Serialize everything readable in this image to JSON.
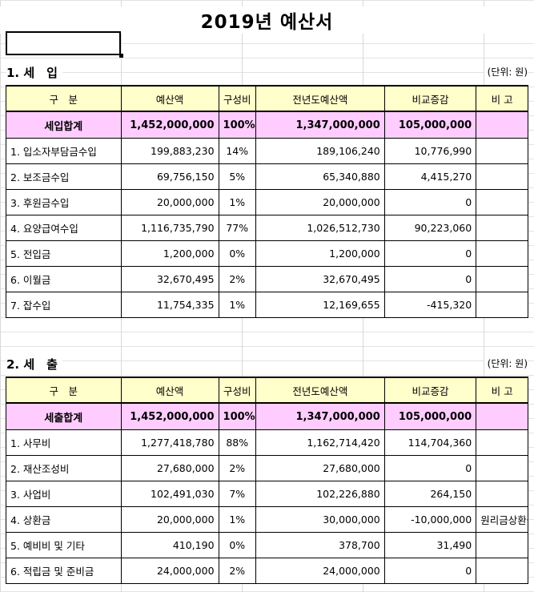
{
  "title": "2019년 예산서",
  "columns": [
    "구　분",
    "예산액",
    "구성비",
    "전년도예산액",
    "비교증감",
    "비 고"
  ],
  "revenue": {
    "heading": "1. 세　입",
    "unit": "(단위: 원)",
    "total": {
      "name": "세입합계",
      "budget": "1,452,000,000",
      "ratio": "100%",
      "prev": "1,347,000,000",
      "diff": "105,000,000",
      "note": ""
    },
    "rows": [
      {
        "name": "1. 입소자부담금수입",
        "budget": "199,883,230",
        "ratio": "14%",
        "prev": "189,106,240",
        "diff": "10,776,990",
        "note": ""
      },
      {
        "name": "2. 보조금수입",
        "budget": "69,756,150",
        "ratio": "5%",
        "prev": "65,340,880",
        "diff": "4,415,270",
        "note": ""
      },
      {
        "name": "3. 후원금수입",
        "budget": "20,000,000",
        "ratio": "1%",
        "prev": "20,000,000",
        "diff": "0",
        "note": ""
      },
      {
        "name": "4. 요양급여수입",
        "budget": "1,116,735,790",
        "ratio": "77%",
        "prev": "1,026,512,730",
        "diff": "90,223,060",
        "note": ""
      },
      {
        "name": "5. 전입금",
        "budget": "1,200,000",
        "ratio": "0%",
        "prev": "1,200,000",
        "diff": "0",
        "note": ""
      },
      {
        "name": "6. 이월금",
        "budget": "32,670,495",
        "ratio": "2%",
        "prev": "32,670,495",
        "diff": "0",
        "note": ""
      },
      {
        "name": "7. 잡수입",
        "budget": "11,754,335",
        "ratio": "1%",
        "prev": "12,169,655",
        "diff": "-415,320",
        "note": ""
      }
    ]
  },
  "expense": {
    "heading": "2. 세　출",
    "unit": "(단위: 원)",
    "total": {
      "name": "세출합계",
      "budget": "1,452,000,000",
      "ratio": "100%",
      "prev": "1,347,000,000",
      "diff": "105,000,000",
      "note": ""
    },
    "rows": [
      {
        "name": "1. 사무비",
        "budget": "1,277,418,780",
        "ratio": "88%",
        "prev": "1,162,714,420",
        "diff": "114,704,360",
        "note": ""
      },
      {
        "name": "2. 재산조성비",
        "budget": "27,680,000",
        "ratio": "2%",
        "prev": "27,680,000",
        "diff": "0",
        "note": ""
      },
      {
        "name": "3. 사업비",
        "budget": "102,491,030",
        "ratio": "7%",
        "prev": "102,226,880",
        "diff": "264,150",
        "note": ""
      },
      {
        "name": "4. 상환금",
        "budget": "20,000,000",
        "ratio": "1%",
        "prev": "30,000,000",
        "diff": "-10,000,000",
        "note": "원리금상환금"
      },
      {
        "name": "5. 예비비 및 기타",
        "budget": "410,190",
        "ratio": "0%",
        "prev": "378,700",
        "diff": "31,490",
        "note": ""
      },
      {
        "name": "6. 적립금 및 준비금",
        "budget": "24,000,000",
        "ratio": "2%",
        "prev": "24,000,000",
        "diff": "0",
        "note": ""
      }
    ]
  }
}
